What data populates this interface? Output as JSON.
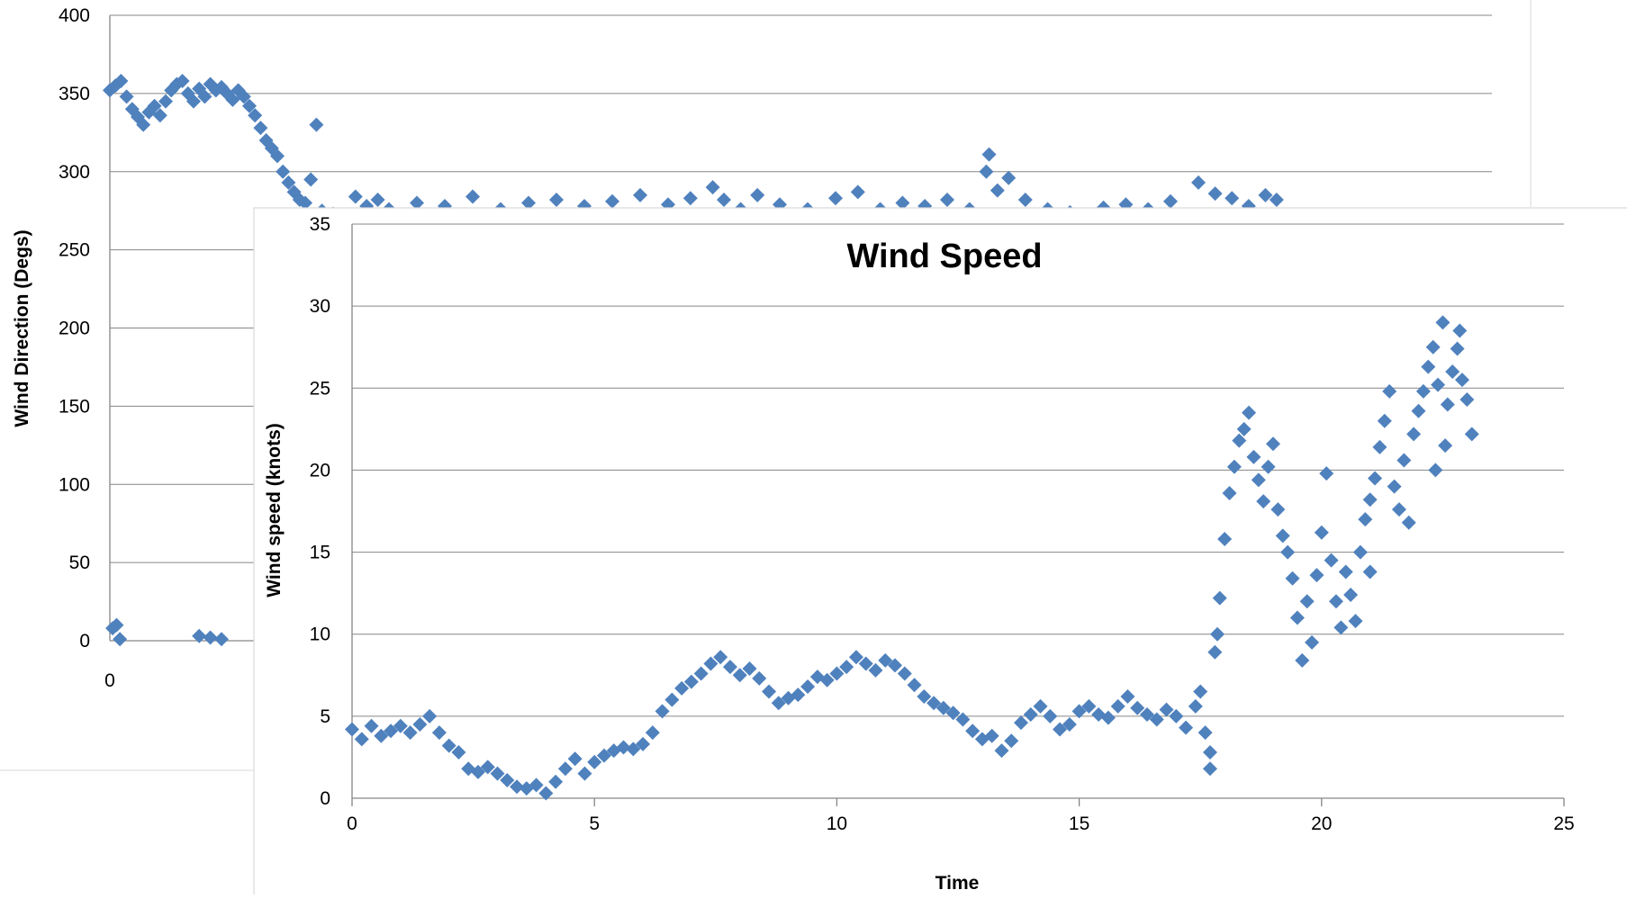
{
  "colors": {
    "marker": "#4F81BD",
    "gridline": "#868686",
    "axis": "#868686",
    "text": "#000000",
    "panel_border": "#d9d9d9"
  },
  "chart_data": [
    {
      "type": "scatter",
      "title": "",
      "xlabel": "",
      "ylabel": "Wind Direction (Degs)",
      "ylim": [
        0,
        400
      ],
      "y_ticks": [
        "0",
        "50",
        "100",
        "150",
        "200",
        "250",
        "300",
        "350",
        "400"
      ],
      "x_ticks_visible": [
        "0"
      ],
      "grid": true,
      "marker": "diamond",
      "partially_obscured": true,
      "series": [
        {
          "values": [
            [
              0.0,
              352
            ],
            [
              0.1,
              355
            ],
            [
              0.2,
              358
            ],
            [
              0.3,
              348
            ],
            [
              0.4,
              340
            ],
            [
              0.5,
              335
            ],
            [
              0.6,
              330
            ],
            [
              0.7,
              338
            ],
            [
              0.8,
              342
            ],
            [
              0.9,
              336
            ],
            [
              1.0,
              345
            ],
            [
              1.1,
              352
            ],
            [
              1.2,
              356
            ],
            [
              1.3,
              358
            ],
            [
              1.4,
              350
            ],
            [
              1.5,
              345
            ],
            [
              1.6,
              353
            ],
            [
              1.7,
              348
            ],
            [
              1.8,
              356
            ],
            [
              1.9,
              352
            ],
            [
              2.0,
              354
            ],
            [
              2.1,
              350
            ],
            [
              2.2,
              346
            ],
            [
              2.3,
              352
            ],
            [
              2.4,
              348
            ],
            [
              2.5,
              342
            ],
            [
              2.6,
              336
            ],
            [
              2.7,
              328
            ],
            [
              2.8,
              320
            ],
            [
              2.9,
              315
            ],
            [
              3.0,
              310
            ],
            [
              3.1,
              300
            ],
            [
              3.2,
              293
            ],
            [
              3.3,
              287
            ],
            [
              3.4,
              282
            ],
            [
              3.5,
              280
            ],
            [
              3.6,
              295
            ],
            [
              3.7,
              330
            ],
            [
              0.05,
              8
            ],
            [
              0.12,
              10
            ],
            [
              0.18,
              1
            ],
            [
              1.6,
              3
            ],
            [
              1.8,
              2
            ],
            [
              2.0,
              1
            ],
            [
              3.8,
              275
            ],
            [
              4.0,
              273
            ],
            [
              4.4,
              284
            ],
            [
              4.6,
              278
            ],
            [
              4.8,
              282
            ],
            [
              5.0,
              276
            ],
            [
              5.5,
              280
            ],
            [
              6.0,
              278
            ],
            [
              6.5,
              284
            ],
            [
              7.0,
              276
            ],
            [
              7.5,
              280
            ],
            [
              8.0,
              282
            ],
            [
              8.5,
              278
            ],
            [
              9.0,
              281
            ],
            [
              9.5,
              285
            ],
            [
              10.0,
              279
            ],
            [
              10.4,
              283
            ],
            [
              10.8,
              290
            ],
            [
              11.0,
              282
            ],
            [
              11.3,
              276
            ],
            [
              11.6,
              285
            ],
            [
              12.0,
              279
            ],
            [
              12.5,
              276
            ],
            [
              13.0,
              283
            ],
            [
              13.4,
              287
            ],
            [
              13.8,
              276
            ],
            [
              14.2,
              280
            ],
            [
              14.6,
              278
            ],
            [
              15.0,
              282
            ],
            [
              15.4,
              276
            ],
            [
              15.7,
              300
            ],
            [
              15.75,
              311
            ],
            [
              15.9,
              288
            ],
            [
              16.1,
              296
            ],
            [
              16.4,
              282
            ],
            [
              16.8,
              276
            ],
            [
              17.2,
              274
            ],
            [
              17.8,
              277
            ],
            [
              18.2,
              279
            ],
            [
              18.6,
              276
            ],
            [
              19.0,
              281
            ],
            [
              19.5,
              293
            ],
            [
              19.8,
              286
            ],
            [
              20.1,
              283
            ],
            [
              20.4,
              278
            ],
            [
              20.7,
              285
            ],
            [
              20.9,
              282
            ]
          ]
        }
      ]
    },
    {
      "type": "scatter",
      "title": "Wind Speed",
      "xlabel": "Time",
      "ylabel": "Wind speed (knots)",
      "xlim": [
        0,
        25
      ],
      "ylim": [
        0,
        35
      ],
      "x_ticks": [
        "0",
        "5",
        "10",
        "15",
        "20",
        "25"
      ],
      "y_ticks": [
        "0",
        "5",
        "10",
        "15",
        "20",
        "25",
        "30",
        "35"
      ],
      "grid": true,
      "marker": "diamond",
      "series": [
        {
          "values": [
            [
              0.0,
              4.2
            ],
            [
              0.2,
              3.6
            ],
            [
              0.4,
              4.4
            ],
            [
              0.6,
              3.8
            ],
            [
              0.8,
              4.1
            ],
            [
              1.0,
              4.4
            ],
            [
              1.2,
              4.0
            ],
            [
              1.4,
              4.5
            ],
            [
              1.6,
              5.0
            ],
            [
              1.8,
              4.0
            ],
            [
              2.0,
              3.2
            ],
            [
              2.2,
              2.8
            ],
            [
              2.4,
              1.8
            ],
            [
              2.6,
              1.6
            ],
            [
              2.8,
              1.9
            ],
            [
              3.0,
              1.5
            ],
            [
              3.2,
              1.1
            ],
            [
              3.4,
              0.7
            ],
            [
              3.6,
              0.6
            ],
            [
              3.8,
              0.8
            ],
            [
              4.0,
              0.3
            ],
            [
              4.2,
              1.0
            ],
            [
              4.4,
              1.8
            ],
            [
              4.6,
              2.4
            ],
            [
              4.8,
              1.5
            ],
            [
              5.0,
              2.2
            ],
            [
              5.2,
              2.6
            ],
            [
              5.4,
              2.9
            ],
            [
              5.6,
              3.1
            ],
            [
              5.8,
              3.0
            ],
            [
              6.0,
              3.3
            ],
            [
              6.2,
              4.0
            ],
            [
              6.4,
              5.3
            ],
            [
              6.6,
              6.0
            ],
            [
              6.8,
              6.7
            ],
            [
              7.0,
              7.1
            ],
            [
              7.2,
              7.6
            ],
            [
              7.4,
              8.2
            ],
            [
              7.6,
              8.6
            ],
            [
              7.8,
              8.0
            ],
            [
              8.0,
              7.5
            ],
            [
              8.2,
              7.9
            ],
            [
              8.4,
              7.3
            ],
            [
              8.6,
              6.5
            ],
            [
              8.8,
              5.8
            ],
            [
              9.0,
              6.1
            ],
            [
              9.2,
              6.3
            ],
            [
              9.4,
              6.8
            ],
            [
              9.6,
              7.4
            ],
            [
              9.8,
              7.2
            ],
            [
              10.0,
              7.6
            ],
            [
              10.2,
              8.0
            ],
            [
              10.4,
              8.6
            ],
            [
              10.6,
              8.2
            ],
            [
              10.8,
              7.8
            ],
            [
              11.0,
              8.4
            ],
            [
              11.2,
              8.1
            ],
            [
              11.4,
              7.6
            ],
            [
              11.6,
              6.9
            ],
            [
              11.8,
              6.2
            ],
            [
              12.0,
              5.8
            ],
            [
              12.2,
              5.5
            ],
            [
              12.4,
              5.2
            ],
            [
              12.6,
              4.8
            ],
            [
              12.8,
              4.1
            ],
            [
              13.0,
              3.6
            ],
            [
              13.2,
              3.8
            ],
            [
              13.4,
              2.9
            ],
            [
              13.6,
              3.5
            ],
            [
              13.8,
              4.6
            ],
            [
              14.0,
              5.1
            ],
            [
              14.2,
              5.6
            ],
            [
              14.4,
              5.0
            ],
            [
              14.6,
              4.2
            ],
            [
              14.8,
              4.5
            ],
            [
              15.0,
              5.3
            ],
            [
              15.2,
              5.6
            ],
            [
              15.4,
              5.1
            ],
            [
              15.6,
              4.9
            ],
            [
              15.8,
              5.6
            ],
            [
              16.0,
              6.2
            ],
            [
              16.2,
              5.5
            ],
            [
              16.4,
              5.1
            ],
            [
              16.6,
              4.8
            ],
            [
              16.8,
              5.4
            ],
            [
              17.0,
              5.0
            ],
            [
              17.2,
              4.3
            ],
            [
              17.4,
              5.6
            ],
            [
              17.5,
              6.5
            ],
            [
              17.6,
              4.0
            ],
            [
              17.7,
              2.8
            ],
            [
              17.7,
              1.8
            ],
            [
              17.8,
              8.9
            ],
            [
              17.85,
              10.0
            ],
            [
              17.9,
              12.2
            ],
            [
              18.0,
              15.8
            ],
            [
              18.1,
              18.6
            ],
            [
              18.2,
              20.2
            ],
            [
              18.3,
              21.8
            ],
            [
              18.4,
              22.5
            ],
            [
              18.5,
              23.5
            ],
            [
              18.6,
              20.8
            ],
            [
              18.7,
              19.4
            ],
            [
              18.8,
              18.1
            ],
            [
              18.9,
              20.2
            ],
            [
              19.0,
              21.6
            ],
            [
              19.1,
              17.6
            ],
            [
              19.2,
              16.0
            ],
            [
              19.3,
              15.0
            ],
            [
              19.4,
              13.4
            ],
            [
              19.5,
              11.0
            ],
            [
              19.6,
              8.4
            ],
            [
              19.7,
              12.0
            ],
            [
              19.8,
              9.5
            ],
            [
              19.9,
              13.6
            ],
            [
              20.0,
              16.2
            ],
            [
              20.1,
              19.8
            ],
            [
              20.2,
              14.5
            ],
            [
              20.3,
              12.0
            ],
            [
              20.4,
              10.4
            ],
            [
              20.5,
              13.8
            ],
            [
              20.6,
              12.4
            ],
            [
              20.7,
              10.8
            ],
            [
              20.8,
              15.0
            ],
            [
              20.9,
              17.0
            ],
            [
              21.0,
              18.2
            ],
            [
              21.1,
              19.5
            ],
            [
              21.2,
              21.4
            ],
            [
              21.3,
              23.0
            ],
            [
              21.4,
              24.8
            ],
            [
              21.5,
              19.0
            ],
            [
              21.6,
              17.6
            ],
            [
              21.7,
              20.6
            ],
            [
              21.8,
              16.8
            ],
            [
              21.9,
              22.2
            ],
            [
              22.0,
              23.6
            ],
            [
              22.1,
              24.8
            ],
            [
              22.2,
              26.3
            ],
            [
              22.3,
              27.5
            ],
            [
              22.4,
              25.2
            ],
            [
              22.5,
              29.0
            ],
            [
              22.6,
              24.0
            ],
            [
              22.7,
              26.0
            ],
            [
              22.8,
              27.4
            ],
            [
              22.9,
              25.5
            ],
            [
              23.0,
              24.3
            ],
            [
              23.1,
              22.2
            ],
            [
              22.35,
              20.0
            ],
            [
              22.55,
              21.5
            ],
            [
              22.85,
              28.5
            ],
            [
              21.0,
              13.8
            ]
          ]
        }
      ]
    }
  ]
}
